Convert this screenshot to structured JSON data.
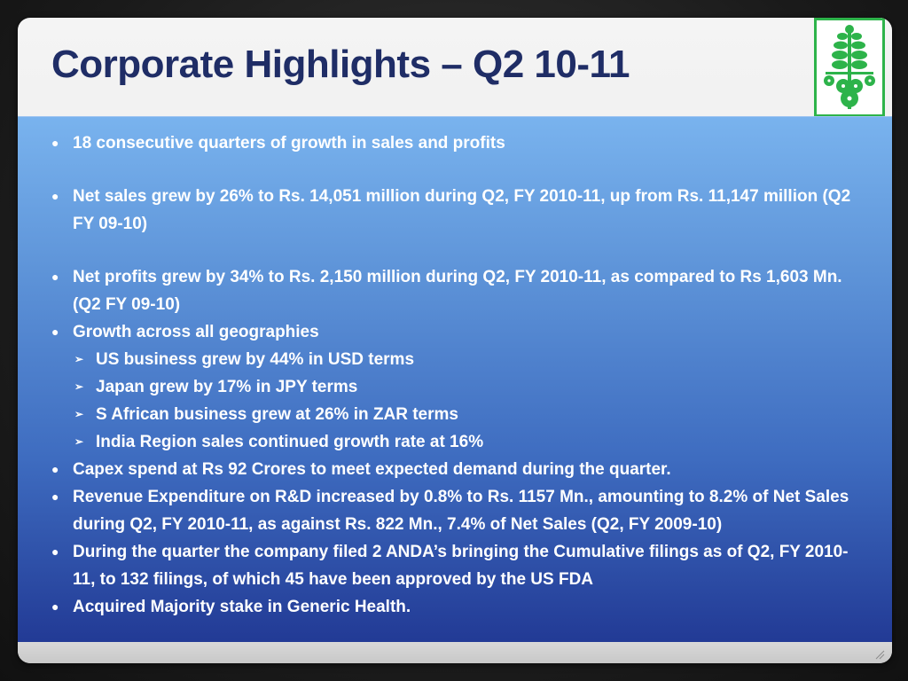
{
  "slide": {
    "title": "Corporate Highlights – Q2 10-11",
    "bullets": [
      "18 consecutive quarters of growth in sales and profits",
      "Net sales grew by 26% to Rs. 14,051 million during Q2, FY 2010-11, up from Rs. 11,147 million (Q2 FY 09-10)",
      "Net profits grew by 34% to Rs. 2,150 million during Q2, FY 2010-11, as compared to Rs 1,603 Mn. (Q2 FY 09-10)",
      "Growth across all geographies",
      "US business grew by 44% in USD terms",
      "Japan grew by 17% in JPY terms",
      "S African business grew at 26% in ZAR terms",
      "India Region sales continued growth rate at 16%",
      "Capex spend at Rs 92 Crores to meet expected demand  during the quarter.",
      "Revenue Expenditure on R&D increased by 0.8% to Rs. 1157 Mn., amounting to 8.2% of Net Sales during Q2, FY 2010-11, as against Rs. 822 Mn., 7.4% of Net Sales (Q2, FY 2009-10)",
      "During the quarter the company filed 2 ANDA’s bringing the Cumulative filings as of Q2, FY 2010-11, to 132 filings, of which 45 have been approved by the US FDA",
      "Acquired Majority stake in Generic  Health."
    ]
  },
  "colors": {
    "title": "#1f2d66",
    "logo_green": "#2db34a",
    "panel_top": "#79b3ee",
    "panel_bottom": "#223a95"
  },
  "icons": {
    "logo": "plant-logo-icon",
    "bullet": "round-bullet-icon",
    "sub_bullet": "arrow-bullet-icon"
  }
}
